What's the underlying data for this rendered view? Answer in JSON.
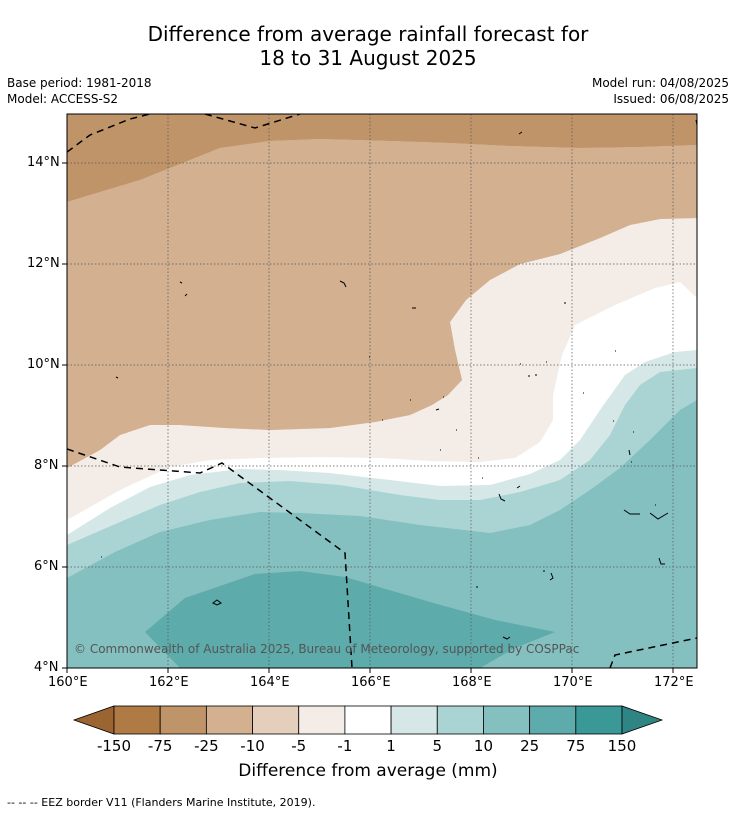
{
  "title": {
    "line1": "Difference from average rainfall forecast for",
    "line2": "18 to 31 August 2025"
  },
  "meta": {
    "base_period": "Base period: 1981-2018",
    "model": "Model: ACCESS-S2",
    "model_run": "Model run: 04/08/2025",
    "issued": "Issued: 06/08/2025"
  },
  "map": {
    "lat_labels": [
      "14°N",
      "12°N",
      "10°N",
      "8°N",
      "6°N",
      "4°N"
    ],
    "lon_labels": [
      "160°E",
      "162°E",
      "164°E",
      "166°E",
      "168°E",
      "170°E",
      "172°E"
    ],
    "copyright": "© Commonwealth of Australia 2025, Bureau of Meteorology, supported by COSPPac"
  },
  "colorbar": {
    "ticks": [
      "-150",
      "-75",
      "-25",
      "-10",
      "-5",
      "-1",
      "1",
      "5",
      "10",
      "25",
      "75",
      "150"
    ],
    "colors": [
      "#9a6530",
      "#b07a44",
      "#c09469",
      "#d2b090",
      "#e3cfbc",
      "#f4ece6",
      "#ffffff",
      "#d5e8e7",
      "#aad4d3",
      "#84c0bf",
      "#5eabab",
      "#3a9896",
      "#2e8583"
    ],
    "label": "Difference from average (mm)"
  },
  "footnote": "--  --  -- EEZ border V11 (Flanders Marine Institute, 2019)."
}
